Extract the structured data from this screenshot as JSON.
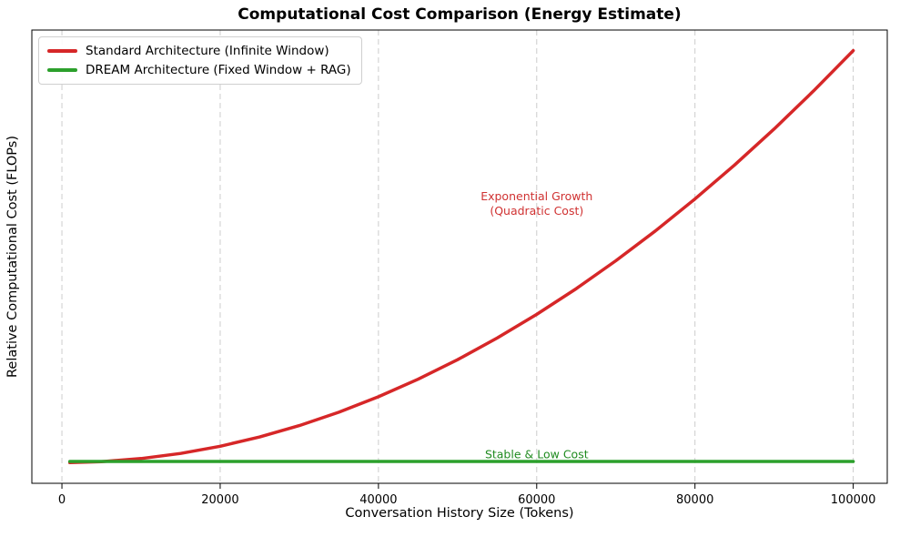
{
  "chart_data": {
    "type": "line",
    "title": "Computational Cost Comparison (Energy Estimate)",
    "xlabel": "Conversation History Size (Tokens)",
    "ylabel": "Relative Computational Cost (FLOPs)",
    "xlim": [
      -3800,
      104300
    ],
    "ylim": [
      -0.05,
      1.05
    ],
    "x_ticks": [
      0,
      20000,
      40000,
      60000,
      80000,
      100000
    ],
    "x_tick_labels": [
      "0",
      "20000",
      "40000",
      "60000",
      "80000",
      "100000"
    ],
    "grid": {
      "axis": "x",
      "style": "dashed",
      "color": "#cccccc"
    },
    "spine_color": "#000000",
    "legend_position": "upper left",
    "x": [
      1000,
      5000,
      10000,
      15000,
      20000,
      25000,
      30000,
      35000,
      40000,
      45000,
      50000,
      55000,
      60000,
      65000,
      70000,
      75000,
      80000,
      85000,
      90000,
      95000,
      100000
    ],
    "series": [
      {
        "name": "Standard Architecture (Infinite Window)",
        "color": "#d62728",
        "values": [
          0.0001,
          0.0025,
          0.01,
          0.0225,
          0.04,
          0.0625,
          0.09,
          0.1225,
          0.16,
          0.2025,
          0.25,
          0.3025,
          0.36,
          0.4225,
          0.49,
          0.5625,
          0.64,
          0.7225,
          0.81,
          0.9025,
          1.0
        ]
      },
      {
        "name": "DREAM Architecture (Fixed Window + RAG)",
        "color": "#2ca02c",
        "values": [
          0.003,
          0.003,
          0.003,
          0.003,
          0.003,
          0.003,
          0.003,
          0.003,
          0.003,
          0.003,
          0.003,
          0.003,
          0.003,
          0.003,
          0.003,
          0.003,
          0.003,
          0.003,
          0.003,
          0.003,
          0.003
        ]
      }
    ],
    "annotations": [
      {
        "lines": [
          "Exponential Growth",
          "(Quadratic Cost)"
        ],
        "x": 60000,
        "y": 0.63,
        "color": "#d03232"
      },
      {
        "lines": [
          "Stable & Low Cost"
        ],
        "x": 60000,
        "y": 0.02,
        "color": "#1f8b1f"
      }
    ]
  }
}
